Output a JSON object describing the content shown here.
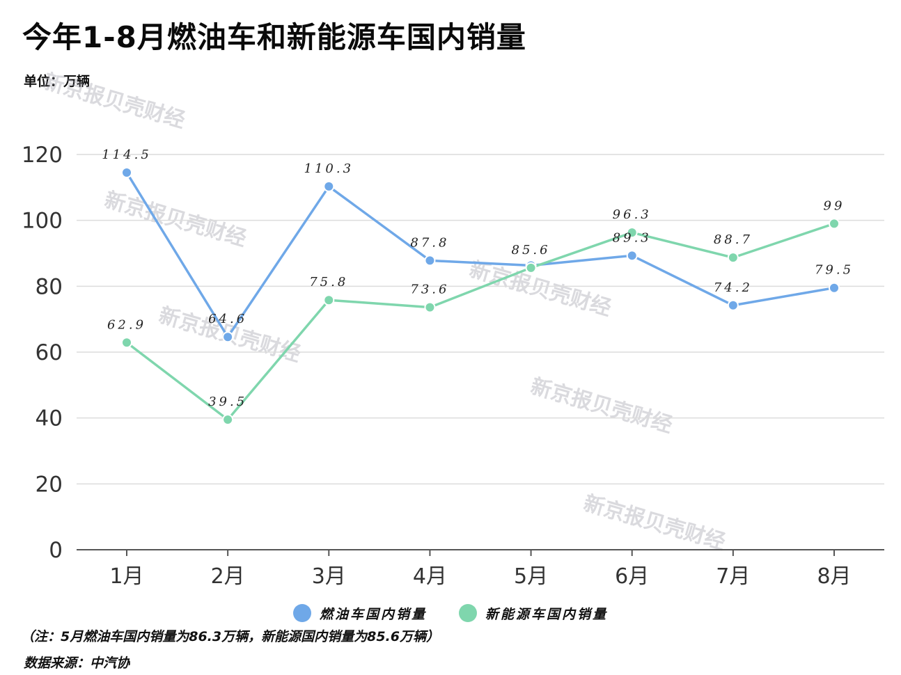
{
  "header": {
    "title": "今年1-8月燃油车和新能源车国内销量",
    "unit": "单位：万辆"
  },
  "footer": {
    "note": "（注：5月燃油车国内销量为86.3万辆，新能源国内销量为85.6万辆）",
    "source": "数据来源：中汽协"
  },
  "watermark": {
    "text": "新京报贝壳财经"
  },
  "colors": {
    "fuel": "#6fa8e8",
    "nev": "#7fd6ad",
    "grid": "#dcdcdc",
    "axis": "#555555"
  },
  "chart_data": {
    "type": "line",
    "categories": [
      "1月",
      "2月",
      "3月",
      "4月",
      "5月",
      "6月",
      "7月",
      "8月"
    ],
    "ylim": [
      0,
      120
    ],
    "yticks": [
      0,
      20,
      40,
      60,
      80,
      100,
      120
    ],
    "grid": true,
    "legend_position": "bottom",
    "series": [
      {
        "name": "燃油车国内销量",
        "values": [
          114.5,
          64.6,
          110.3,
          87.8,
          86.3,
          89.3,
          74.2,
          79.5
        ],
        "labels": [
          "114.5",
          "64.6",
          "110.3",
          "87.8",
          "",
          "89.3",
          "74.2",
          "79.5"
        ]
      },
      {
        "name": "新能源车国内销量",
        "values": [
          62.9,
          39.5,
          75.8,
          73.6,
          85.6,
          96.3,
          88.7,
          99
        ],
        "labels": [
          "62.9",
          "39.5",
          "75.8",
          "73.6",
          "85.6",
          "96.3",
          "88.7",
          "99"
        ]
      }
    ]
  }
}
